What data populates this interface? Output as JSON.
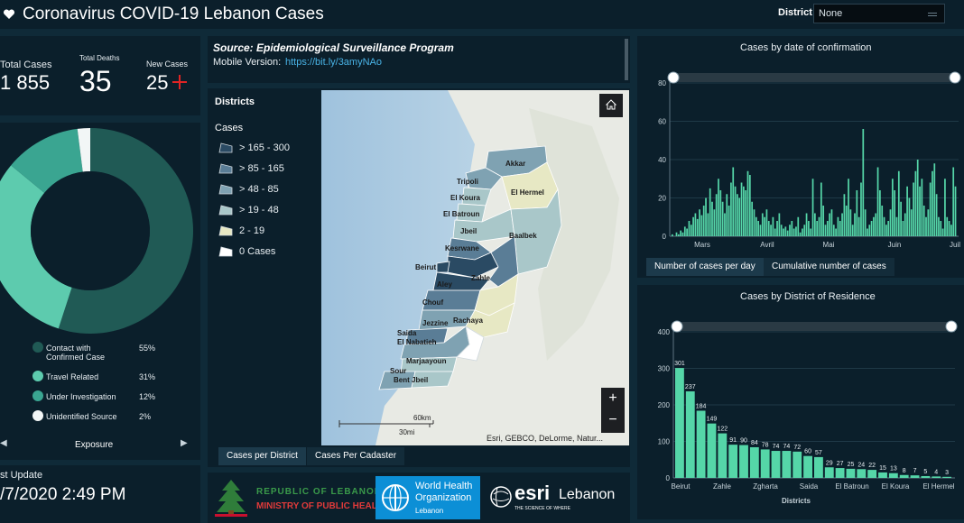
{
  "header": {
    "title": "Coronavirus COVID-19 Lebanon Cases",
    "district_label": "District",
    "district_value": "None"
  },
  "kpis": {
    "total_cases_label": "Total Cases",
    "total_cases_value": "1 855",
    "total_deaths_label": "Total Deaths",
    "total_deaths_value": "35",
    "new_cases_label": "New Cases",
    "new_cases_value": "25",
    "new_cases_icon": "plus-icon"
  },
  "exposure": {
    "tab_label": "Exposure",
    "items": [
      {
        "label_line1": "Contact with",
        "label_line2": "Confirmed Case",
        "pct": "55%",
        "value": 55,
        "color": "#205a55"
      },
      {
        "label_line1": "Travel Related",
        "label_line2": "",
        "pct": "31%",
        "value": 31,
        "color": "#5dcbae"
      },
      {
        "label_line1": "Under Investigation",
        "label_line2": "",
        "pct": "12%",
        "value": 12,
        "color": "#3aa591"
      },
      {
        "label_line1": "Unidentified Source",
        "label_line2": "",
        "pct": "2%",
        "value": 2,
        "color": "#f2f6f6"
      }
    ]
  },
  "last_update": {
    "label": "st Update",
    "value": "/7/2020 2:49 PM"
  },
  "source": {
    "title": "Source: Epidemiological Surveillance Program",
    "mobile_label": "Mobile Version:",
    "mobile_link": "https://bit.ly/3amyNAo"
  },
  "map": {
    "legend_title": "Districts",
    "legend_subtitle": "Cases",
    "legend": [
      {
        "label": "> 165 - 300",
        "color": "#2a4a63"
      },
      {
        "label": "> 85 - 165",
        "color": "#5a7d96"
      },
      {
        "label": "> 48 - 85",
        "color": "#7fa2b2"
      },
      {
        "label": "> 19 - 48",
        "color": "#a9c7c9"
      },
      {
        "label": "2 - 19",
        "color": "#e7e8c4"
      },
      {
        "label": "0 Cases",
        "color": "#ffffff"
      }
    ],
    "labels": [
      "Akkar",
      "Tripoli",
      "El Hermel",
      "El Koura",
      "El Batroun",
      "Jbeil",
      "Baalbek",
      "Kesrwane",
      "Beirut",
      "Zahle",
      "Aley",
      "Chouf",
      "Jezzine",
      "Rachaya",
      "Saida",
      "El Nabatieh",
      "Marjaayoun",
      "Sour",
      "Bent Jbeil"
    ],
    "scale_km": "60km",
    "scale_mi": "30mi",
    "attribution": "Esri, GEBCO, DeLorme, Natur...",
    "home_icon": "home-icon",
    "zoom_in": "+",
    "zoom_out": "−",
    "tabs": [
      "Cases per District",
      "Cases Per Cadaster"
    ]
  },
  "logos": {
    "lebanon_line1": "REPUBLIC OF LEBANON",
    "lebanon_line2": "MINISTRY OF PUBLIC HEALTH",
    "who_line1": "World Health",
    "who_line2": "Organization",
    "who_line3": "Lebanon",
    "esri_name": "esri",
    "esri_tagline": "THE SCIENCE OF WHERE",
    "esri_country": "Lebanon"
  },
  "chart_data": [
    {
      "type": "bar",
      "title": "Cases by  date of confirmation",
      "xlabel": "",
      "ylabel": "",
      "ylim": [
        0,
        80
      ],
      "yticks": [
        0,
        20,
        40,
        60,
        80
      ],
      "x_tick_labels": [
        "Mars",
        "Avril",
        "Mai",
        "Juin",
        "Juil"
      ],
      "values": [
        1,
        0,
        2,
        1,
        3,
        2,
        5,
        4,
        8,
        6,
        10,
        12,
        9,
        14,
        11,
        16,
        20,
        12,
        25,
        18,
        14,
        22,
        30,
        24,
        18,
        12,
        22,
        16,
        28,
        36,
        26,
        22,
        20,
        28,
        26,
        24,
        34,
        32,
        18,
        14,
        10,
        8,
        6,
        12,
        10,
        14,
        8,
        6,
        10,
        4,
        8,
        12,
        6,
        4,
        5,
        3,
        6,
        8,
        4,
        5,
        10,
        2,
        4,
        6,
        12,
        8,
        4,
        30,
        12,
        8,
        10,
        28,
        16,
        6,
        8,
        12,
        14,
        6,
        4,
        10,
        8,
        12,
        22,
        16,
        30,
        14,
        6,
        12,
        24,
        10,
        28,
        56,
        14,
        4,
        6,
        8,
        10,
        12,
        36,
        24,
        16,
        10,
        6,
        8,
        14,
        30,
        24,
        10,
        34,
        18,
        8,
        12,
        26,
        20,
        14,
        28,
        34,
        40,
        26,
        30,
        16,
        10,
        14,
        28,
        34,
        38,
        22,
        10,
        8,
        4,
        30,
        10,
        8,
        6,
        36,
        26
      ],
      "grid": true,
      "tabs": [
        "Number of cases per day",
        "Cumulative number of cases"
      ]
    },
    {
      "type": "bar",
      "title": "Cases by District of Residence",
      "xlabel": "Districts",
      "ylabel": "",
      "ylim": [
        0,
        400
      ],
      "yticks": [
        0,
        100,
        200,
        300,
        400
      ],
      "x_tick_labels": [
        "Beirut",
        "Zahle",
        "Zgharta",
        "Saida",
        "El Batroun",
        "El Koura",
        "El Hermel"
      ],
      "values": [
        301,
        237,
        184,
        149,
        122,
        91,
        90,
        84,
        78,
        74,
        74,
        72,
        60,
        57,
        29,
        27,
        25,
        24,
        22,
        15,
        13,
        8,
        7,
        5,
        4,
        3
      ],
      "value_labels": [
        "301",
        "237",
        "184",
        "149",
        "122",
        "91",
        "90",
        "84",
        "78",
        "74",
        "74",
        "72",
        "60",
        "57",
        "29",
        "27",
        "25",
        "24",
        "22",
        "15",
        "13",
        "8",
        "7",
        "5",
        "4",
        "3"
      ],
      "grid": true
    }
  ]
}
